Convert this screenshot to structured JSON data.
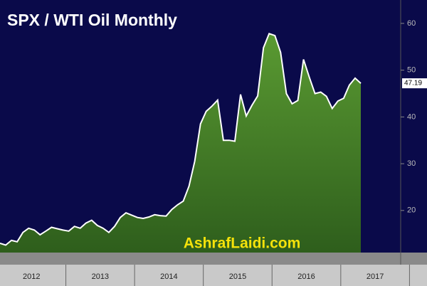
{
  "chart_data": {
    "type": "area",
    "title": "SPX / WTI Oil Monthly",
    "watermark": "AshrafLaidi.com",
    "categories": [
      null,
      null,
      null,
      null,
      null,
      null,
      null,
      null,
      null,
      null,
      null,
      null,
      null,
      null,
      null,
      null,
      null,
      null,
      null,
      null,
      null,
      null,
      null,
      null,
      null,
      null,
      null,
      null,
      null,
      null,
      null,
      null,
      null,
      null,
      null,
      null,
      null,
      null,
      null,
      null,
      null,
      null,
      null,
      null,
      null,
      null,
      null,
      null,
      null,
      null,
      null,
      null,
      null,
      null,
      null,
      null,
      null,
      null,
      null,
      null,
      null,
      null,
      null,
      null
    ],
    "series": [
      {
        "name": "SPX / WTI",
        "color": "#ffffff",
        "fill": [
          "#5a9a32",
          "#2e5e1c"
        ],
        "values": [
          13.0,
          12.6,
          13.6,
          13.3,
          15.3,
          16.2,
          15.8,
          14.8,
          15.6,
          16.4,
          16.1,
          15.8,
          15.6,
          16.6,
          16.2,
          17.3,
          17.9,
          16.8,
          16.2,
          15.3,
          16.6,
          18.5,
          19.5,
          19.0,
          18.5,
          18.3,
          18.6,
          19.1,
          18.9,
          18.8,
          20.2,
          21.2,
          22.0,
          25.2,
          30.5,
          38.5,
          41.2,
          42.3,
          43.6,
          35.0,
          35.0,
          34.8,
          44.8,
          40.2,
          42.5,
          44.5,
          54.8,
          57.8,
          57.4,
          53.8,
          45.0,
          42.8,
          43.5,
          52.3,
          48.5,
          45.0,
          45.3,
          44.4,
          41.8,
          43.4,
          44.0,
          46.8,
          48.3,
          47.19
        ]
      }
    ],
    "last_label": "47.19",
    "xticks": [
      "2012",
      "2013",
      "2014",
      "2015",
      "2016",
      "2017"
    ],
    "ylim": [
      11,
      65
    ],
    "yticks": [
      20,
      30,
      40,
      50,
      60
    ]
  }
}
